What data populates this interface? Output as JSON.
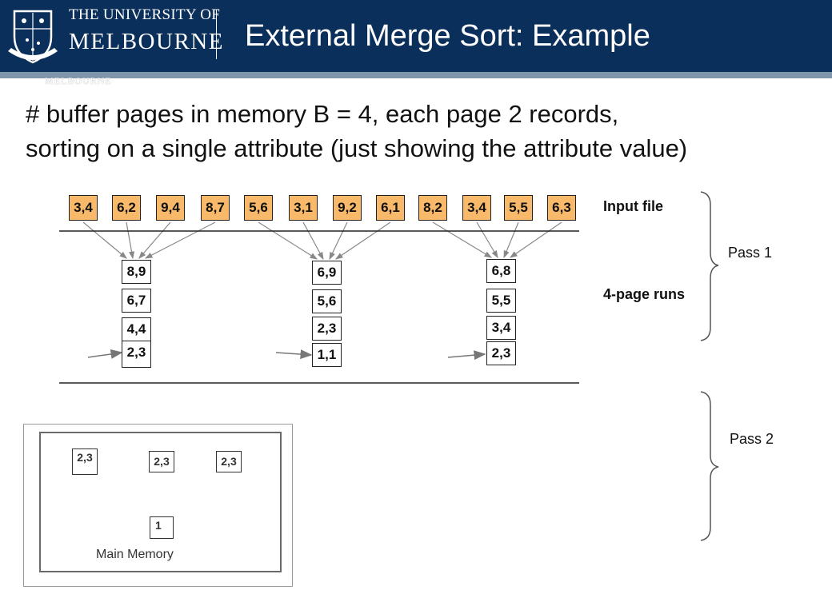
{
  "header": {
    "university_line1": "THE UNIVERSITY OF",
    "university_line2": "MELBOURNE",
    "title": "External Merge Sort: Example",
    "ghost_text": "MELBOURNE"
  },
  "intro": {
    "line1": "# buffer pages in memory  B = 4, each page 2 records,",
    "line2": "sorting on a single attribute (just showing the attribute value)"
  },
  "input_pages": [
    "3,4",
    "6,2",
    "9,4",
    "8,7",
    "5,6",
    "3,1",
    "9,2",
    "6,1",
    "8,2",
    "3,4",
    "5,5",
    "6,3"
  ],
  "runs": [
    [
      "8,9",
      "6,7",
      "4,4",
      "2,3"
    ],
    [
      "6,9",
      "5,6",
      "2,3",
      "1,1"
    ],
    [
      "6,8",
      "5,5",
      "3,4",
      "2,3"
    ]
  ],
  "labels": {
    "input_file": "Input file",
    "runs": "4-page runs",
    "pass1": "Pass 1",
    "pass2": "Pass 2"
  },
  "memory": {
    "buffers": [
      "2,3",
      "2,3",
      "2,3"
    ],
    "output": "1",
    "label": "Main Memory"
  },
  "colors": {
    "header_bg": "#0b2f5b",
    "header_strip": "#7f95ab",
    "input_page_fill": "#f8ba6a"
  }
}
